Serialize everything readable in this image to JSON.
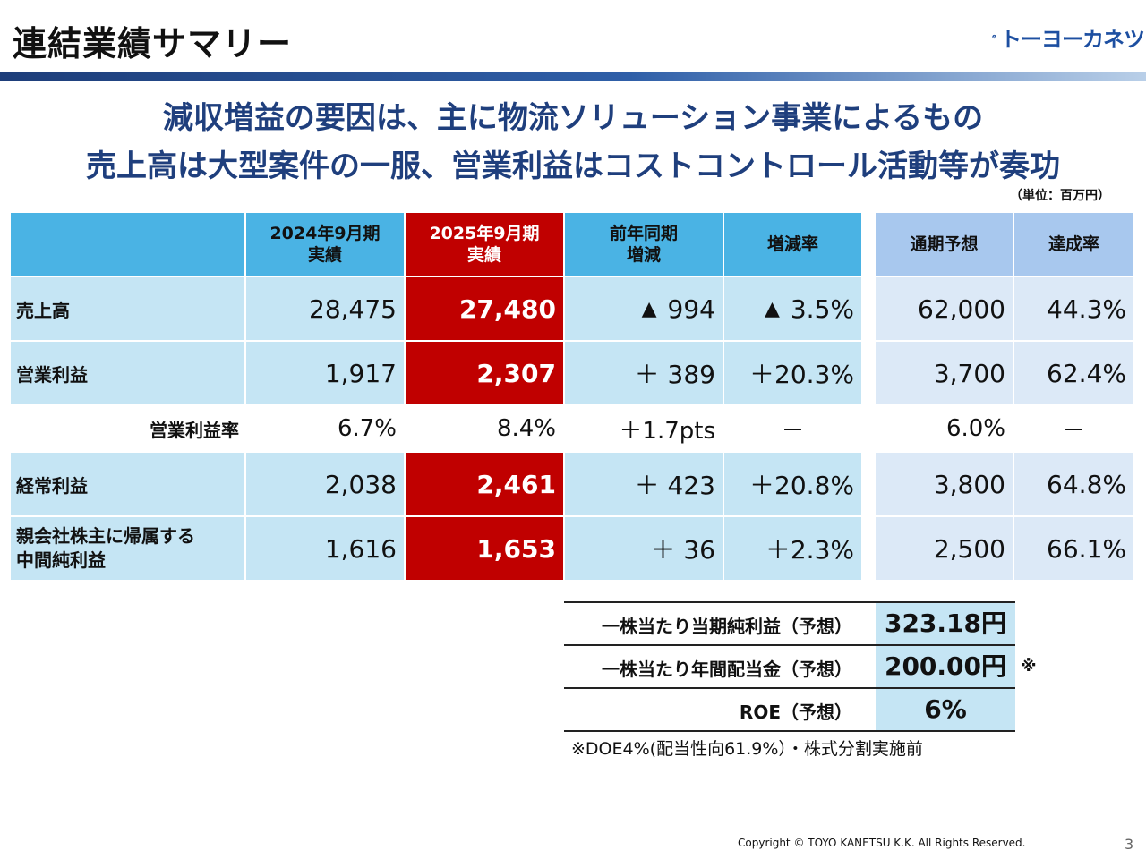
{
  "slide": {
    "title": "連結業績サマリー",
    "logo_text": "トーヨーカネツ",
    "headline_1": "減収増益の要因は、主に物流ソリューション事業によるもの",
    "headline_2": "売上高は大型案件の一服、営業利益はコストコントロール活動等が奏功",
    "unit": "（単位：百万円）",
    "copyright": "Copyright ©  TOYO KANETSU K.K. All Rights Reserved.",
    "page_number": "3",
    "colors": {
      "header_blue": "#4ab3e4",
      "highlight_red": "#c00000",
      "row_blue": "#c5e5f4",
      "forecast_blue": "#dce9f7",
      "headline": "#1f3f7d"
    }
  },
  "table": {
    "headers": {
      "prev_1": "2024年9月期",
      "prev_2": "実績",
      "curr_1": "2025年9月期",
      "curr_2": "実績",
      "diff_1": "前年同期",
      "diff_2": "増減",
      "rate": "増減率",
      "forecast": "通期予想",
      "achieve": "達成率"
    },
    "rows": [
      {
        "label": "売上高",
        "prev": "28,475",
        "curr": "27,480",
        "diff_sign": "▲",
        "diff": "994",
        "rate_sign": "▲",
        "rate": "3.5%",
        "forecast": "62,000",
        "achieve": "44.3%"
      },
      {
        "label": "営業利益",
        "prev": "1,917",
        "curr": "2,307",
        "diff": "＋ 389",
        "rate": "＋20.3%",
        "forecast": "3,700",
        "achieve": "62.4%"
      },
      {
        "label": "営業利益率",
        "prev": "6.7%",
        "curr": "8.4%",
        "diff": "＋1.7pts",
        "rate": "－",
        "forecast": "6.0%",
        "achieve": "－"
      },
      {
        "label": "経常利益",
        "prev": "2,038",
        "curr": "2,461",
        "diff": "＋ 423",
        "rate": "＋20.8%",
        "forecast": "3,800",
        "achieve": "64.8%"
      },
      {
        "label_1": "親会社株主に帰属する",
        "label_2": "中間純利益",
        "prev": "1,616",
        "curr": "1,653",
        "diff": "＋ 36",
        "rate": "＋2.3%",
        "forecast": "2,500",
        "achieve": "66.1%"
      }
    ]
  },
  "per_share": {
    "eps_label": "一株当たり当期純利益（予想）",
    "eps_value": "323.18円",
    "dps_label": "一株当たり年間配当金（予想）",
    "dps_value": "200.00円",
    "roe_label": "ROE（予想）",
    "roe_value": "6%",
    "asterisk": "※",
    "note": "※DOE4%(配当性向61.9%）・株式分割実施前"
  }
}
